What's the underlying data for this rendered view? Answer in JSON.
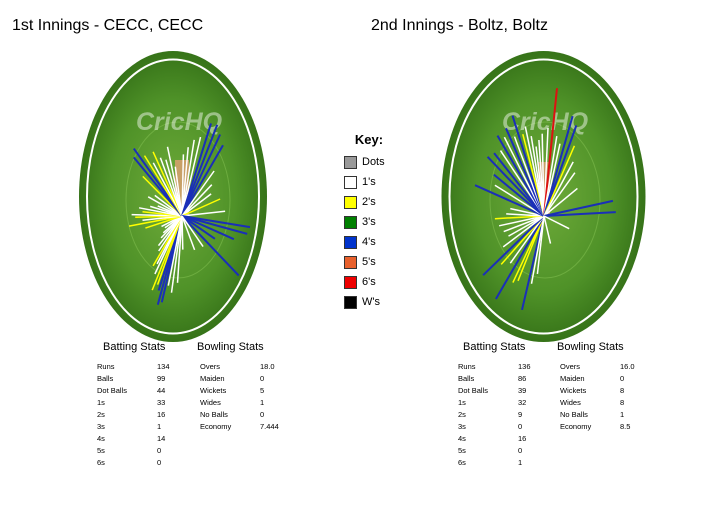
{
  "innings": [
    {
      "title": "1st Innings - CECC, CECC",
      "watermark": "CricHQ",
      "batting_header": "Batting Stats",
      "bowling_header": "Bowling Stats",
      "batting": [
        {
          "label": "Runs",
          "value": "134"
        },
        {
          "label": "Balls",
          "value": "99"
        },
        {
          "label": "Dot Balls",
          "value": "44"
        },
        {
          "label": "1s",
          "value": "33"
        },
        {
          "label": "2s",
          "value": "16"
        },
        {
          "label": "3s",
          "value": "1"
        },
        {
          "label": "4s",
          "value": "14"
        },
        {
          "label": "5s",
          "value": "0"
        },
        {
          "label": "6s",
          "value": "0"
        }
      ],
      "bowling": [
        {
          "label": "Overs",
          "value": "18.0"
        },
        {
          "label": "Maiden",
          "value": "0"
        },
        {
          "label": "Wickets",
          "value": "5"
        },
        {
          "label": "Wides",
          "value": "1"
        },
        {
          "label": "No Balls",
          "value": "0"
        },
        {
          "label": "Economy",
          "value": "7.444"
        }
      ]
    },
    {
      "title": "2nd Innings - Boltz, Boltz",
      "watermark": "CricHQ",
      "batting_header": "Batting Stats",
      "bowling_header": "Bowling Stats",
      "batting": [
        {
          "label": "Runs",
          "value": "136"
        },
        {
          "label": "Balls",
          "value": "86"
        },
        {
          "label": "Dot Balls",
          "value": "39"
        },
        {
          "label": "1s",
          "value": "32"
        },
        {
          "label": "2s",
          "value": "9"
        },
        {
          "label": "3s",
          "value": "0"
        },
        {
          "label": "4s",
          "value": "16"
        },
        {
          "label": "5s",
          "value": "0"
        },
        {
          "label": "6s",
          "value": "1"
        }
      ],
      "bowling": [
        {
          "label": "Overs",
          "value": "16.0"
        },
        {
          "label": "Maiden",
          "value": "0"
        },
        {
          "label": "Wickets",
          "value": "8"
        },
        {
          "label": "Wides",
          "value": "8"
        },
        {
          "label": "No Balls",
          "value": "1"
        },
        {
          "label": "Economy",
          "value": "8.5"
        }
      ]
    }
  ],
  "key": {
    "title": "Key:",
    "items": [
      {
        "label": "Dots",
        "color": "#999999"
      },
      {
        "label": "1's",
        "color": "#ffffff"
      },
      {
        "label": "2's",
        "color": "#ffff00"
      },
      {
        "label": "3's",
        "color": "#008000"
      },
      {
        "label": "4's",
        "color": "#0033cc"
      },
      {
        "label": "5's",
        "color": "#e8602c"
      },
      {
        "label": "6's",
        "color": "#ee0000"
      },
      {
        "label": "W's",
        "color": "#000000"
      }
    ]
  },
  "chart_data": {
    "type": "wagon-wheel",
    "shot_colors": {
      "1": "#ffffff",
      "2": "#ffff00",
      "3": "#008000",
      "4": "#1a2fb8",
      "6": "#dd1111"
    },
    "shots": [
      [
        {
          "angle": 200,
          "len": 0.82,
          "runs": 4
        },
        {
          "angle": 203,
          "len": 0.86,
          "runs": 4
        },
        {
          "angle": 206,
          "len": 0.74,
          "runs": 4
        },
        {
          "angle": 209,
          "len": 0.7,
          "runs": 2
        },
        {
          "angle": 212,
          "len": 0.78,
          "runs": 2
        },
        {
          "angle": 216,
          "len": 0.64,
          "runs": 1
        },
        {
          "angle": 219,
          "len": 0.55,
          "runs": 1
        },
        {
          "angle": 222,
          "len": 0.6,
          "runs": 2
        },
        {
          "angle": 226,
          "len": 0.45,
          "runs": 1
        },
        {
          "angle": 231,
          "len": 0.42,
          "runs": 1
        },
        {
          "angle": 236,
          "len": 0.35,
          "runs": 1
        },
        {
          "angle": 240,
          "len": 0.3,
          "runs": 1
        },
        {
          "angle": 246,
          "len": 0.26,
          "runs": 1
        },
        {
          "angle": 252,
          "len": 0.3,
          "runs": 1
        },
        {
          "angle": 258,
          "len": 0.52,
          "runs": 2
        },
        {
          "angle": 263,
          "len": 0.74,
          "runs": 2
        },
        {
          "angle": 266,
          "len": 0.55,
          "runs": 1
        },
        {
          "angle": 269,
          "len": 0.65,
          "runs": 2
        },
        {
          "angle": 271,
          "len": 0.7,
          "runs": 1
        },
        {
          "angle": 274,
          "len": 0.55,
          "runs": 2
        },
        {
          "angle": 277,
          "len": 0.6,
          "runs": 1
        },
        {
          "angle": 281,
          "len": 0.45,
          "runs": 1
        },
        {
          "angle": 285,
          "len": 0.35,
          "runs": 1
        },
        {
          "angle": 290,
          "len": 0.5,
          "runs": 1
        },
        {
          "angle": 296,
          "len": 0.42,
          "runs": 1
        },
        {
          "angle": 303,
          "len": 0.65,
          "runs": 2
        },
        {
          "angle": 308,
          "len": 0.85,
          "runs": 4
        },
        {
          "angle": 312,
          "len": 0.9,
          "runs": 4
        },
        {
          "angle": 316,
          "len": 0.75,
          "runs": 2
        },
        {
          "angle": 320,
          "len": 0.62,
          "runs": 1
        },
        {
          "angle": 325,
          "len": 0.7,
          "runs": 2
        },
        {
          "angle": 330,
          "len": 0.6,
          "runs": 1
        },
        {
          "angle": 336,
          "len": 0.55,
          "runs": 1
        },
        {
          "angle": 342,
          "len": 0.65,
          "runs": 1
        },
        {
          "angle": 348,
          "len": 0.45,
          "runs": 1
        },
        {
          "angle": 2,
          "len": 0.55,
          "runs": 1
        },
        {
          "angle": 8,
          "len": 0.62,
          "runs": 1
        },
        {
          "angle": 14,
          "len": 0.7,
          "runs": 1
        },
        {
          "angle": 20,
          "len": 0.75,
          "runs": 1
        },
        {
          "angle": 26,
          "len": 0.92,
          "runs": 4
        },
        {
          "angle": 31,
          "len": 0.95,
          "runs": 4
        },
        {
          "angle": 36,
          "len": 0.9,
          "runs": 4
        },
        {
          "angle": 42,
          "len": 0.85,
          "runs": 4
        },
        {
          "angle": 48,
          "len": 0.6,
          "runs": 1
        },
        {
          "angle": 56,
          "len": 0.5,
          "runs": 1
        },
        {
          "angle": 64,
          "len": 0.45,
          "runs": 1
        },
        {
          "angle": 74,
          "len": 0.55,
          "runs": 2
        },
        {
          "angle": 86,
          "len": 0.6,
          "runs": 1
        },
        {
          "angle": 96,
          "len": 0.95,
          "runs": 4
        },
        {
          "angle": 100,
          "len": 0.92,
          "runs": 4
        },
        {
          "angle": 106,
          "len": 0.75,
          "runs": 4
        },
        {
          "angle": 114,
          "len": 0.5,
          "runs": 4
        },
        {
          "angle": 124,
          "len": 0.95,
          "runs": 4
        },
        {
          "angle": 133,
          "len": 0.4,
          "runs": 1
        },
        {
          "angle": 150,
          "len": 0.35,
          "runs": 1
        },
        {
          "angle": 178,
          "len": 0.3,
          "runs": 1
        },
        {
          "angle": 186,
          "len": 0.6,
          "runs": 1
        },
        {
          "angle": 192,
          "len": 0.7,
          "runs": 1
        },
        {
          "angle": 197,
          "len": 0.65,
          "runs": 1
        }
      ],
      [
        {
          "angle": 200,
          "len": 0.85,
          "runs": 4
        },
        {
          "angle": 212,
          "len": 0.65,
          "runs": 2
        },
        {
          "angle": 216,
          "len": 0.7,
          "runs": 2
        },
        {
          "angle": 222,
          "len": 0.95,
          "runs": 4
        },
        {
          "angle": 228,
          "len": 0.6,
          "runs": 1
        },
        {
          "angle": 234,
          "len": 0.7,
          "runs": 2
        },
        {
          "angle": 238,
          "len": 0.95,
          "runs": 4
        },
        {
          "angle": 244,
          "len": 0.6,
          "runs": 1
        },
        {
          "angle": 250,
          "len": 0.5,
          "runs": 1
        },
        {
          "angle": 256,
          "len": 0.55,
          "runs": 1
        },
        {
          "angle": 262,
          "len": 0.6,
          "runs": 1
        },
        {
          "angle": 268,
          "len": 0.65,
          "runs": 2
        },
        {
          "angle": 272,
          "len": 0.5,
          "runs": 1
        },
        {
          "angle": 278,
          "len": 0.45,
          "runs": 1
        },
        {
          "angle": 286,
          "len": 0.95,
          "runs": 4
        },
        {
          "angle": 292,
          "len": 0.7,
          "runs": 1
        },
        {
          "angle": 298,
          "len": 0.75,
          "runs": 4
        },
        {
          "angle": 304,
          "len": 0.9,
          "runs": 4
        },
        {
          "angle": 309,
          "len": 0.85,
          "runs": 4
        },
        {
          "angle": 314,
          "len": 0.8,
          "runs": 1
        },
        {
          "angle": 318,
          "len": 0.92,
          "runs": 4
        },
        {
          "angle": 322,
          "len": 0.85,
          "runs": 1
        },
        {
          "angle": 326,
          "len": 0.9,
          "runs": 4
        },
        {
          "angle": 330,
          "len": 0.78,
          "runs": 1
        },
        {
          "angle": 334,
          "len": 0.95,
          "runs": 4
        },
        {
          "angle": 338,
          "len": 0.75,
          "runs": 2
        },
        {
          "angle": 342,
          "len": 0.8,
          "runs": 1
        },
        {
          "angle": 346,
          "len": 0.7,
          "runs": 1
        },
        {
          "angle": 350,
          "len": 0.6,
          "runs": 1
        },
        {
          "angle": 354,
          "len": 0.65,
          "runs": 1
        },
        {
          "angle": 358,
          "len": 0.7,
          "runs": 1
        },
        {
          "angle": 4,
          "len": 0.75,
          "runs": 1
        },
        {
          "angle": 9,
          "len": 1.1,
          "runs": 6
        },
        {
          "angle": 14,
          "len": 0.7,
          "runs": 1
        },
        {
          "angle": 19,
          "len": 0.65,
          "runs": 1
        },
        {
          "angle": 24,
          "len": 0.93,
          "runs": 4
        },
        {
          "angle": 29,
          "len": 0.88,
          "runs": 4
        },
        {
          "angle": 34,
          "len": 0.72,
          "runs": 2
        },
        {
          "angle": 40,
          "len": 0.6,
          "runs": 1
        },
        {
          "angle": 48,
          "len": 0.55,
          "runs": 1
        },
        {
          "angle": 62,
          "len": 0.5,
          "runs": 1
        },
        {
          "angle": 82,
          "len": 0.92,
          "runs": 4
        },
        {
          "angle": 88,
          "len": 0.95,
          "runs": 4
        },
        {
          "angle": 108,
          "len": 0.35,
          "runs": 1
        },
        {
          "angle": 160,
          "len": 0.25,
          "runs": 1
        },
        {
          "angle": 190,
          "len": 0.5,
          "runs": 1
        },
        {
          "angle": 196,
          "len": 0.6,
          "runs": 1
        }
      ]
    ]
  }
}
